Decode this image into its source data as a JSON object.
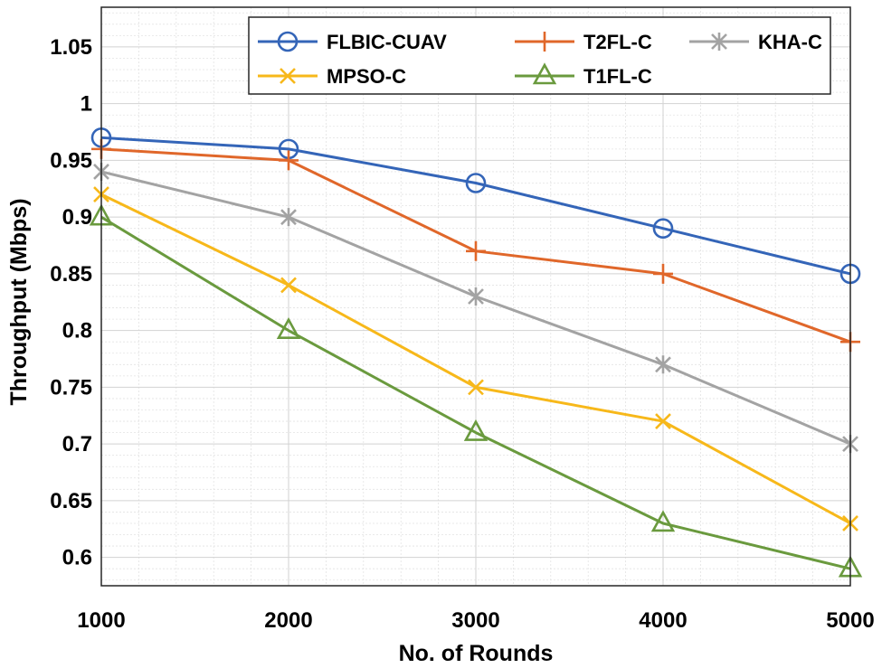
{
  "chart_data": {
    "type": "line",
    "title": "",
    "xlabel": "No. of Rounds",
    "ylabel": "Throughput (Mbps)",
    "x": [
      1000,
      2000,
      3000,
      4000,
      5000
    ],
    "xlim": [
      1000,
      5000
    ],
    "ylim": [
      0.575,
      1.085
    ],
    "xticks": [
      1000,
      2000,
      3000,
      4000,
      5000
    ],
    "xtick_labels": [
      "1000",
      "2000",
      "3000",
      "4000",
      "5000"
    ],
    "yticks": [
      0.6,
      0.65,
      0.7,
      0.75,
      0.8,
      0.85,
      0.9,
      0.95,
      1,
      1.05
    ],
    "ytick_labels": [
      "0.6",
      "0.65",
      "0.7",
      "0.75",
      "0.8",
      "0.85",
      "0.9",
      "0.95",
      "1",
      "1.05"
    ],
    "grid": true,
    "minor_grid": true,
    "legend_position": "top-right",
    "series": [
      {
        "name": "FLBIC-CUAV",
        "color": "#3465b8",
        "marker": "circle",
        "values": [
          0.97,
          0.96,
          0.93,
          0.89,
          0.85
        ]
      },
      {
        "name": "T2FL-C",
        "color": "#e0672a",
        "marker": "plus",
        "values": [
          0.96,
          0.95,
          0.87,
          0.85,
          0.79
        ]
      },
      {
        "name": "KHA-C",
        "color": "#a3a3a3",
        "marker": "asterisk",
        "values": [
          0.94,
          0.9,
          0.83,
          0.77,
          0.7
        ]
      },
      {
        "name": "MPSO-C",
        "color": "#f7b81a",
        "marker": "x",
        "values": [
          0.92,
          0.84,
          0.75,
          0.72,
          0.63
        ]
      },
      {
        "name": "T1FL-C",
        "color": "#6a9a3e",
        "marker": "triangle",
        "values": [
          0.9,
          0.8,
          0.71,
          0.63,
          0.59
        ]
      }
    ]
  }
}
